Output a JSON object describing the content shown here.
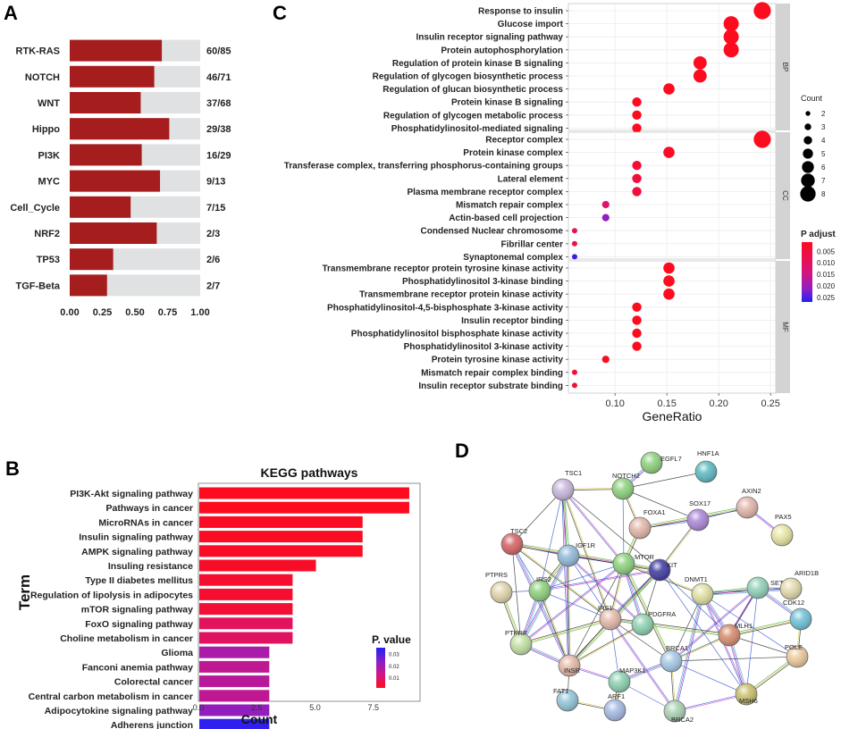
{
  "panels": {
    "a": "A",
    "b": "B",
    "c": "C",
    "d": "D"
  },
  "colors": {
    "bar_dark": "#a51d1c",
    "bar_light": "#dfe1e3",
    "padjust_high": "#fc0c1e",
    "padjust_low": "#2020f5",
    "strip": "#d3d3d3"
  },
  "chart_data": [
    {
      "id": "A",
      "type": "bar",
      "stacked": true,
      "orientation": "horizontal",
      "categories": [
        "RTK-RAS",
        "NOTCH",
        "WNT",
        "Hippo",
        "PI3K",
        "MYC",
        "Cell_Cycle",
        "NRF2",
        "TP53",
        "TGF-Beta"
      ],
      "series": [
        {
          "name": "altered fraction",
          "values": [
            0.706,
            0.648,
            0.544,
            0.763,
            0.552,
            0.692,
            0.467,
            0.667,
            0.333,
            0.286
          ]
        },
        {
          "name": "total",
          "values": [
            1,
            1,
            1,
            1,
            1,
            1,
            1,
            1,
            1,
            1
          ]
        }
      ],
      "bar_labels": [
        "60/85",
        "46/71",
        "37/68",
        "29/38",
        "16/29",
        "9/13",
        "7/15",
        "2/3",
        "2/6",
        "2/7"
      ],
      "xticks": [
        "0.00",
        "0.25",
        "0.50",
        "0.75",
        "1.00"
      ],
      "xlim": [
        0,
        1
      ],
      "title": "",
      "xlabel": "",
      "ylabel": ""
    },
    {
      "id": "C",
      "type": "scatter",
      "title": "",
      "xlabel": "GeneRatio",
      "ylabel": "",
      "xlim": [
        0.055,
        0.255
      ],
      "xticks": [
        "0.10",
        "0.15",
        "0.20",
        "0.25"
      ],
      "xtick_values": [
        0.1,
        0.15,
        0.2,
        0.25
      ],
      "facets": [
        {
          "name": "BP",
          "terms": [
            {
              "term": "Response to insulin",
              "x": 0.242,
              "count": 8,
              "p": 0.001
            },
            {
              "term": "Glucose import",
              "x": 0.212,
              "count": 7,
              "p": 0.001
            },
            {
              "term": "Insulin receptor signaling pathway",
              "x": 0.212,
              "count": 7,
              "p": 0.001
            },
            {
              "term": "Protein autophosphorylation",
              "x": 0.212,
              "count": 7,
              "p": 0.001
            },
            {
              "term": "Regulation of protein kinase B signaling",
              "x": 0.182,
              "count": 6,
              "p": 0.001
            },
            {
              "term": "Regulation of glycogen biosynthetic process",
              "x": 0.182,
              "count": 6,
              "p": 0.001
            },
            {
              "term": "Regulation of glucan biosynthetic process",
              "x": 0.152,
              "count": 5,
              "p": 0.001
            },
            {
              "term": "Protein kinase B signaling",
              "x": 0.121,
              "count": 4,
              "p": 0.001
            },
            {
              "term": "Regulation of glycogen metabolic process",
              "x": 0.121,
              "count": 4,
              "p": 0.001
            },
            {
              "term": "Phosphatidylinositol-mediated signaling",
              "x": 0.121,
              "count": 4,
              "p": 0.001
            }
          ]
        },
        {
          "name": "CC",
          "terms": [
            {
              "term": "Receptor complex",
              "x": 0.242,
              "count": 8,
              "p": 0.001
            },
            {
              "term": "Protein kinase complex",
              "x": 0.152,
              "count": 5,
              "p": 0.002
            },
            {
              "term": "Transferase complex, transferring phosphorus-containing groups",
              "x": 0.121,
              "count": 4,
              "p": 0.004
            },
            {
              "term": "Lateral element",
              "x": 0.121,
              "count": 4,
              "p": 0.005
            },
            {
              "term": "Plasma membrane receptor complex",
              "x": 0.121,
              "count": 4,
              "p": 0.005
            },
            {
              "term": "Mismatch repair complex",
              "x": 0.091,
              "count": 3,
              "p": 0.012
            },
            {
              "term": "Actin-based cell projection",
              "x": 0.091,
              "count": 3,
              "p": 0.021
            },
            {
              "term": "Condensed Nuclear chromosome",
              "x": 0.061,
              "count": 2,
              "p": 0.007
            },
            {
              "term": "Fibrillar center",
              "x": 0.061,
              "count": 2,
              "p": 0.008
            },
            {
              "term": "Synaptonemal complex",
              "x": 0.061,
              "count": 2,
              "p": 0.026
            }
          ]
        },
        {
          "name": "MF",
          "terms": [
            {
              "term": "Transmembrane receptor protein tyrosine kinase activity",
              "x": 0.152,
              "count": 5,
              "p": 0.001
            },
            {
              "term": "Phosphatidylinositol 3-kinase binding",
              "x": 0.152,
              "count": 5,
              "p": 0.001
            },
            {
              "term": "Transmembrane receptor protein kinase activity",
              "x": 0.152,
              "count": 5,
              "p": 0.001
            },
            {
              "term": "Phosphatidylinositol-4,5-bisphosphate 3-kinase  activity",
              "x": 0.121,
              "count": 4,
              "p": 0.001
            },
            {
              "term": "Insulin receptor binding",
              "x": 0.121,
              "count": 4,
              "p": 0.001
            },
            {
              "term": "Phosphatidylinositol bisphosphate  kinase activity",
              "x": 0.121,
              "count": 4,
              "p": 0.001
            },
            {
              "term": "Phosphatidylinositol 3-kinase activity",
              "x": 0.121,
              "count": 4,
              "p": 0.001
            },
            {
              "term": "Protein tyrosine kinase activity",
              "x": 0.091,
              "count": 3,
              "p": 0.002
            },
            {
              "term": "Mismatch repair complex binding",
              "x": 0.061,
              "count": 2,
              "p": 0.004
            },
            {
              "term": "Insulin receptor substrate binding",
              "x": 0.061,
              "count": 2,
              "p": 0.004
            }
          ]
        }
      ],
      "legend_count": {
        "title": "Count",
        "values": [
          2,
          3,
          4,
          5,
          6,
          7,
          8
        ]
      },
      "legend_color": {
        "title": "P adjust",
        "ticks": [
          "0.005",
          "0.010",
          "0.015",
          "0.020",
          "0.025"
        ],
        "tick_values": [
          0.005,
          0.01,
          0.015,
          0.02,
          0.025
        ],
        "range": [
          0.001,
          0.027
        ]
      }
    },
    {
      "id": "B",
      "type": "bar",
      "orientation": "horizontal",
      "title": "KEGG pathways",
      "xlabel": "Count",
      "ylabel": "Term",
      "xlim": [
        0,
        9.5
      ],
      "xticks": [
        "0.0",
        "2.5",
        "5.0",
        "7.5"
      ],
      "xtick_values": [
        0,
        2.5,
        5.0,
        7.5
      ],
      "categories": [
        "PI3K-Akt signaling pathway",
        "Pathways in cancer",
        "MicroRNAs in cancer",
        "Insulin signaling pathway",
        "AMPK signaling pathway",
        "Insuling resistance",
        "Type II diabetes mellitus",
        "Regulation of lipolysis in adipocytes",
        "mTOR signaling pathway",
        "FoxO signaling pathway",
        "Choline metabolism in cancer",
        "Glioma",
        "Fanconi anemia pathway",
        "Colorectal cancer",
        "Central carbon metabolism in cancer",
        "Adipocytokine signaling pathway",
        "Adherens junction"
      ],
      "values": [
        9,
        9,
        7,
        7,
        7,
        5,
        4,
        4,
        4,
        4,
        4,
        3,
        3,
        3,
        3,
        3,
        3
      ],
      "pvalues": [
        0.001,
        0.001,
        0.002,
        0.002,
        0.002,
        0.003,
        0.004,
        0.004,
        0.005,
        0.012,
        0.013,
        0.024,
        0.021,
        0.022,
        0.021,
        0.027,
        0.034
      ],
      "legend": {
        "title": "P. value",
        "ticks": [
          "0.03",
          "0.02",
          "0.01"
        ],
        "tick_values": [
          0.03,
          0.02,
          0.01
        ],
        "range": [
          0.001,
          0.035
        ]
      }
    }
  ],
  "network": {
    "nodes": [
      {
        "label": "EGFL7",
        "color": "#8bd07a"
      },
      {
        "label": "NOTCH2",
        "color": "#8bd07a"
      },
      {
        "label": "HNF1A",
        "color": "#5ab8c0"
      },
      {
        "label": "TSC1",
        "color": "#c8b6dc"
      },
      {
        "label": "FOXA1",
        "color": "#e2b4a8"
      },
      {
        "label": "AXIN2",
        "color": "#e2b4a8"
      },
      {
        "label": "SOX17",
        "color": "#a985d6"
      },
      {
        "label": "PAX5",
        "color": "#e6e5a0"
      },
      {
        "label": "TSC2",
        "color": "#d45f62"
      },
      {
        "label": "IGF1R",
        "color": "#8fb8d8"
      },
      {
        "label": "MTOR",
        "color": "#8bd07a"
      },
      {
        "label": "KIT",
        "color": "#3c37a0"
      },
      {
        "label": "SETD2",
        "color": "#8fd0b8"
      },
      {
        "label": "ARID1B",
        "color": "#e3d9a8"
      },
      {
        "label": "PTPRS",
        "color": "#dfd4a8"
      },
      {
        "label": "IRS2",
        "color": "#8bd07a"
      },
      {
        "label": "DNMT1",
        "color": "#dfe0a0"
      },
      {
        "label": "CDK12",
        "color": "#6ec0d8"
      },
      {
        "label": "IRS1",
        "color": "#e4b8a8"
      },
      {
        "label": "PDGFRA",
        "color": "#8bd0b0"
      },
      {
        "label": "MLH1",
        "color": "#d68a6c"
      },
      {
        "label": "PTPRF",
        "color": "#c2e0a0"
      },
      {
        "label": "BRCA1",
        "color": "#a4c8e4"
      },
      {
        "label": "POLE",
        "color": "#ecc89a"
      },
      {
        "label": "INSR",
        "color": "#e4b8a8"
      },
      {
        "label": "MAP3K1",
        "color": "#8bd0b0"
      },
      {
        "label": "MSH6",
        "color": "#c8bf6a"
      },
      {
        "label": "FAT1",
        "color": "#8fc4d8"
      },
      {
        "label": "ARF1",
        "color": "#a4b8e4"
      },
      {
        "label": "BRCA2",
        "color": "#a8d0b0"
      }
    ]
  }
}
